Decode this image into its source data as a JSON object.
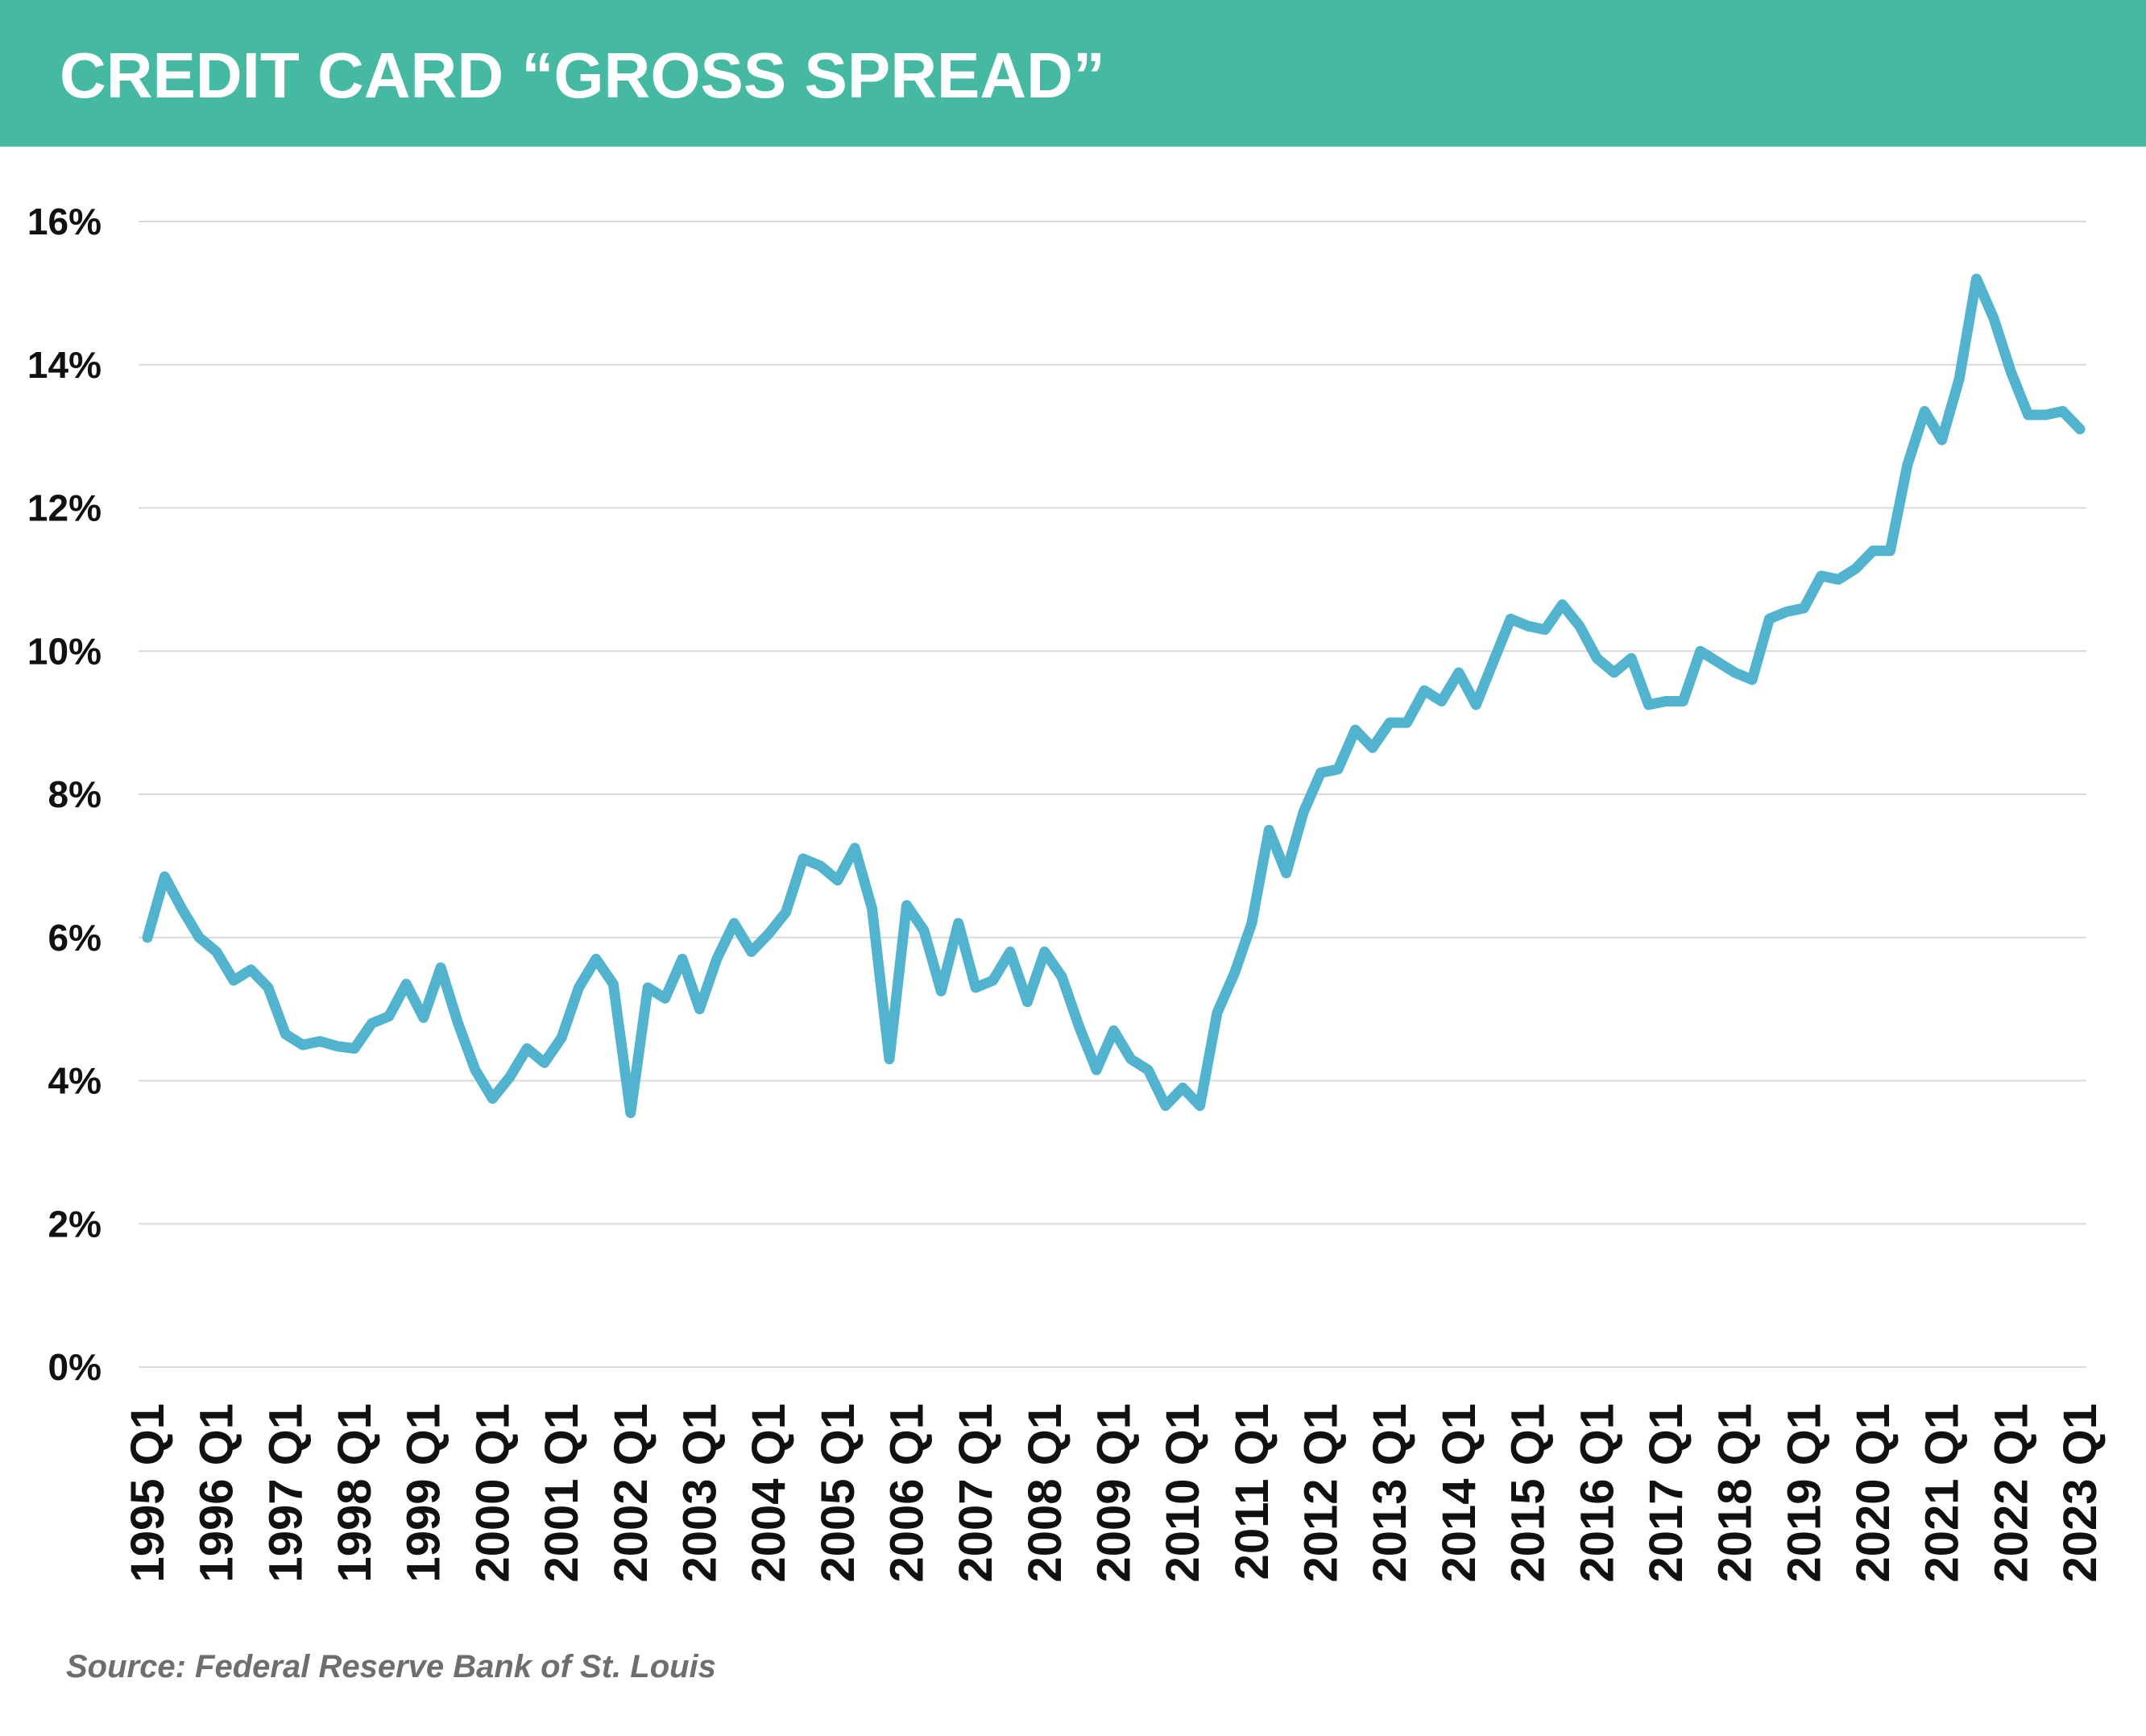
{
  "header": {
    "title": "CREDIT CARD “GROSS SPREAD”"
  },
  "source": "Source: Federal Reserve Bank of St. Louis",
  "colors": {
    "header_bg": "#45b9a1",
    "line": "#52b3cf",
    "grid": "#d9d9d9"
  },
  "chart_data": {
    "type": "line",
    "title": "CREDIT CARD “GROSS SPREAD”",
    "xlabel": "",
    "ylabel": "",
    "ylim": [
      0,
      16
    ],
    "y_ticks": [
      0,
      2,
      4,
      6,
      8,
      10,
      12,
      14,
      16
    ],
    "y_tick_labels": [
      "0%",
      "2%",
      "4%",
      "6%",
      "8%",
      "10%",
      "12%",
      "14%",
      "16%"
    ],
    "x_tick_labels": [
      "1995 Q1",
      "1996 Q1",
      "1997 Q1",
      "1998 Q1",
      "1999 Q1",
      "2000 Q1",
      "2001 Q1",
      "2002 Q1",
      "2003 Q1",
      "2004 Q1",
      "2005 Q1",
      "2006 Q1",
      "2007 Q1",
      "2008 Q1",
      "2009 Q1",
      "2010 Q1",
      "2011 Q1",
      "2012 Q1",
      "2013 Q1",
      "2014 Q1",
      "2015 Q1",
      "2016 Q1",
      "2017 Q1",
      "2018 Q1",
      "2019 Q1",
      "2020 Q1",
      "2021 Q1",
      "2022 Q1",
      "2023 Q1"
    ],
    "grid": true,
    "legend": "none",
    "series": [
      {
        "values": [
          6.0,
          6.85,
          6.4,
          6.0,
          5.8,
          5.4,
          5.55,
          5.3,
          4.65,
          4.5,
          4.55,
          4.48,
          4.45,
          4.8,
          4.9,
          5.35,
          4.88,
          5.58,
          4.8,
          4.15,
          3.75,
          4.05,
          4.45,
          4.25,
          4.6,
          5.3,
          5.7,
          5.35,
          3.55,
          5.3,
          5.15,
          5.7,
          5.0,
          5.7,
          6.2,
          5.8,
          6.05,
          6.35,
          7.1,
          7.0,
          6.8,
          7.25,
          6.4,
          4.3,
          6.45,
          6.1,
          5.25,
          6.2,
          5.3,
          5.4,
          5.8,
          5.1,
          5.8,
          5.45,
          4.75,
          4.15,
          4.7,
          4.3,
          4.15,
          3.65,
          3.9,
          3.65,
          4.95,
          5.5,
          6.2,
          7.5,
          6.9,
          7.75,
          8.3,
          8.35,
          8.9,
          8.65,
          9.0,
          9.0,
          9.45,
          9.3,
          9.7,
          9.25,
          9.85,
          10.45,
          10.35,
          10.3,
          10.65,
          10.35,
          9.9,
          9.7,
          9.9,
          9.25,
          9.3,
          9.3,
          10.0,
          9.85,
          9.7,
          9.6,
          10.45,
          10.55,
          10.6,
          11.05,
          11.0,
          11.15,
          11.4,
          11.4,
          12.6,
          13.35,
          12.95,
          13.8,
          15.2,
          14.65,
          13.9,
          13.3,
          13.3,
          13.35,
          13.1
        ]
      }
    ]
  }
}
